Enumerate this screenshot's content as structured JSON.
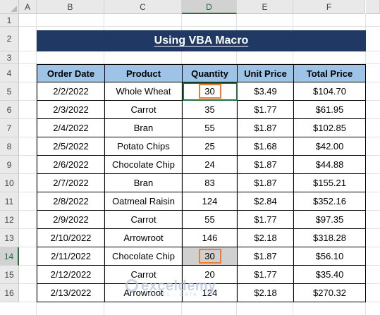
{
  "columns": [
    "A",
    "B",
    "C",
    "D",
    "E",
    "F"
  ],
  "rows": [
    "1",
    "2",
    "3",
    "4",
    "5",
    "6",
    "7",
    "8",
    "9",
    "10",
    "11",
    "12",
    "13",
    "14",
    "15",
    "16"
  ],
  "title": "Using VBA Macro",
  "headers": [
    "Order Date",
    "Product",
    "Quantity",
    "Unit Price",
    "Total Price"
  ],
  "records": [
    {
      "date": "2/2/2022",
      "product": "Whole Wheat",
      "qty": "30",
      "unit": "$3.49",
      "total": "$104.70"
    },
    {
      "date": "2/3/2022",
      "product": "Carrot",
      "qty": "35",
      "unit": "$1.77",
      "total": "$61.95"
    },
    {
      "date": "2/4/2022",
      "product": "Bran",
      "qty": "55",
      "unit": "$1.87",
      "total": "$102.85"
    },
    {
      "date": "2/5/2022",
      "product": "Potato Chips",
      "qty": "25",
      "unit": "$1.68",
      "total": "$42.00"
    },
    {
      "date": "2/6/2022",
      "product": "Chocolate Chip",
      "qty": "24",
      "unit": "$1.87",
      "total": "$44.88"
    },
    {
      "date": "2/7/2022",
      "product": "Bran",
      "qty": "83",
      "unit": "$1.87",
      "total": "$155.21"
    },
    {
      "date": "2/8/2022",
      "product": "Oatmeal Raisin",
      "qty": "124",
      "unit": "$2.84",
      "total": "$352.16"
    },
    {
      "date": "2/9/2022",
      "product": "Carrot",
      "qty": "55",
      "unit": "$1.77",
      "total": "$97.35"
    },
    {
      "date": "2/10/2022",
      "product": "Arrowroot",
      "qty": "146",
      "unit": "$2.18",
      "total": "$318.28"
    },
    {
      "date": "2/11/2022",
      "product": "Chocolate Chip",
      "qty": "30",
      "unit": "$1.87",
      "total": "$56.10"
    },
    {
      "date": "2/12/2022",
      "product": "Carrot",
      "qty": "20",
      "unit": "$1.77",
      "total": "$35.40"
    },
    {
      "date": "2/13/2022",
      "product": "Arrowroot",
      "qty": "124",
      "unit": "$2.18",
      "total": "$270.32"
    }
  ],
  "selection": {
    "active_cell": "D5",
    "selected_column": "D",
    "selected_row": "14"
  },
  "highlight_color": "#ed7d31",
  "watermark": {
    "name": "exceldemy",
    "tagline": "EXCEL · DATA · BI"
  }
}
